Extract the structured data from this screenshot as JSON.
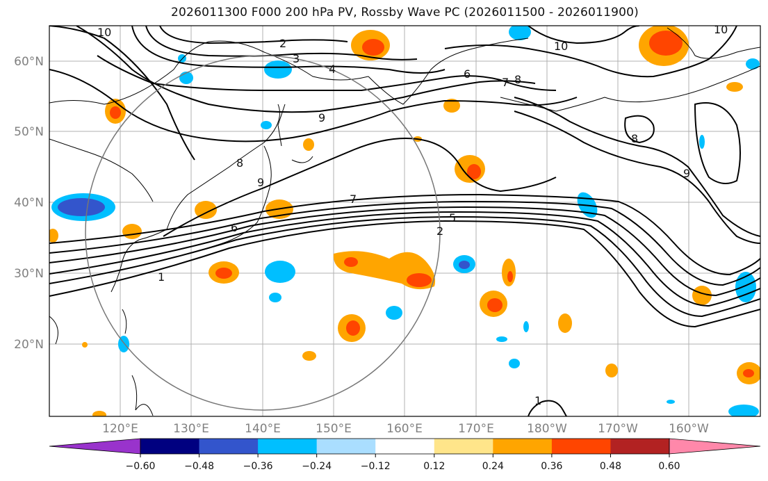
{
  "title": "2026011300 F000 200 hPa PV, Rossby Wave PC (2026011500 - 2026011900)",
  "lat_labels": [
    "60°N",
    "50°N",
    "40°N",
    "30°N",
    "20°N"
  ],
  "lon_labels": [
    "120°E",
    "130°E",
    "140°E",
    "150°E",
    "160°E",
    "170°E",
    "180°W",
    "170°W",
    "160°W"
  ],
  "contour_labels": [
    "10",
    "2",
    "3",
    "4",
    "6",
    "7",
    "8",
    "10",
    "9",
    "9",
    "8",
    "8",
    "9",
    "7",
    "6",
    "5",
    "2",
    "1",
    "1",
    "10"
  ],
  "colorbar": {
    "ticks": [
      "−0.60",
      "−0.48",
      "−0.36",
      "−0.24",
      "−0.12",
      "0.12",
      "0.24",
      "0.36",
      "0.48",
      "0.60"
    ],
    "colors": [
      "#9933cc",
      "#000080",
      "#3355cc",
      "#00bfff",
      "#aadeff",
      "#ffffff",
      "#ffe58a",
      "#ffa500",
      "#ff4500",
      "#b22222",
      "#ff88aa"
    ]
  }
}
